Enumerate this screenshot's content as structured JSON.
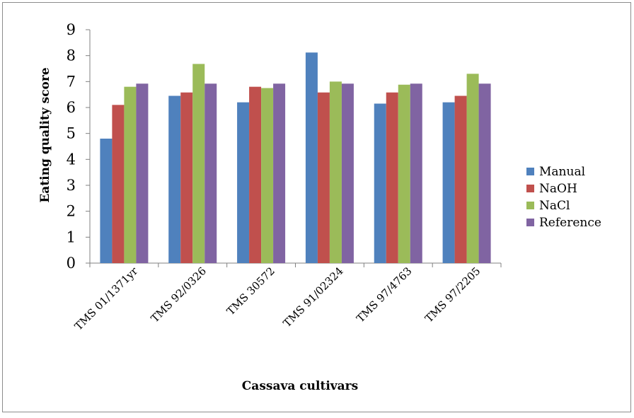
{
  "chart_data": {
    "type": "bar",
    "title": "",
    "xlabel": "Cassava cultivars",
    "ylabel": "Eating quality score",
    "ylim": [
      0,
      9
    ],
    "yticks": [
      0,
      1,
      2,
      3,
      4,
      5,
      6,
      7,
      8,
      9
    ],
    "grid": false,
    "legend_position": "right",
    "categories": [
      "TMS 01/1371yr",
      "TMS 92/0326",
      "TMS 30572",
      "TMS 91/02324",
      "TMS 97/4763",
      "TMS 97/2205"
    ],
    "series": [
      {
        "name": "Manual",
        "color": "#4f81bd",
        "values": [
          4.8,
          6.45,
          6.2,
          8.12,
          6.15,
          6.2
        ]
      },
      {
        "name": "NaOH",
        "color": "#c0504d",
        "values": [
          6.1,
          6.58,
          6.8,
          6.58,
          6.58,
          6.45
        ]
      },
      {
        "name": "NaCl",
        "color": "#9bbb59",
        "values": [
          6.8,
          7.68,
          6.75,
          7.0,
          6.88,
          7.3
        ]
      },
      {
        "name": "Reference",
        "color": "#8064a2",
        "values": [
          6.92,
          6.92,
          6.92,
          6.92,
          6.92,
          6.92
        ]
      }
    ]
  }
}
